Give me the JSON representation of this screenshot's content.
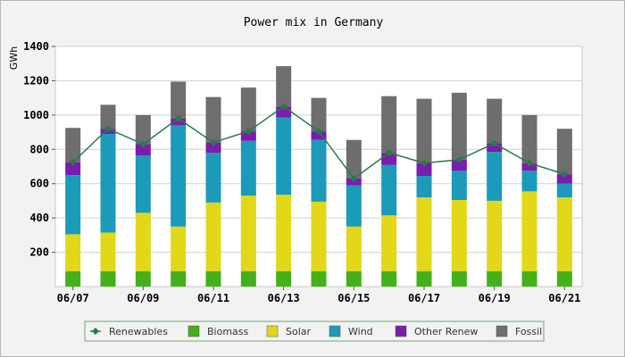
{
  "chart_data": {
    "type": "bar",
    "title": "Power mix in Germany",
    "ylabel": "GWh",
    "xlabel": "",
    "ylim": [
      0,
      1400
    ],
    "yticks": [
      200,
      400,
      600,
      800,
      1000,
      1200,
      1400
    ],
    "grid": true,
    "legend_position": "bottom",
    "categories": [
      "06/07",
      "06/08",
      "06/09",
      "06/10",
      "06/11",
      "06/12",
      "06/13",
      "06/14",
      "06/15",
      "06/16",
      "06/17",
      "06/18",
      "06/19",
      "06/20",
      "06/21"
    ],
    "xtick_labels": [
      "06/07",
      "06/09",
      "06/11",
      "06/13",
      "06/15",
      "06/17",
      "06/19",
      "06/21"
    ],
    "stacked_series": [
      {
        "name": "Biomass",
        "color": "#44b01a",
        "values": [
          90,
          90,
          90,
          90,
          90,
          90,
          90,
          90,
          90,
          90,
          90,
          90,
          90,
          90,
          90
        ]
      },
      {
        "name": "Solar",
        "color": "#e2d719",
        "values": [
          215,
          225,
          340,
          260,
          400,
          440,
          445,
          405,
          260,
          325,
          430,
          415,
          410,
          465,
          430
        ]
      },
      {
        "name": "Wind",
        "color": "#1c9ab9",
        "values": [
          345,
          575,
          335,
          590,
          290,
          320,
          450,
          360,
          240,
          295,
          125,
          170,
          285,
          120,
          80
        ]
      },
      {
        "name": "Other Renew",
        "color": "#7a1cae",
        "values": [
          75,
          30,
          65,
          40,
          60,
          55,
          65,
          50,
          40,
          70,
          75,
          65,
          50,
          45,
          55
        ]
      },
      {
        "name": "Fossil",
        "color": "#6e6e6e",
        "values": [
          200,
          140,
          170,
          215,
          265,
          255,
          235,
          195,
          225,
          330,
          375,
          390,
          260,
          280,
          265
        ]
      }
    ],
    "line_series": {
      "name": "Renewables",
      "color": "#2a7a4a",
      "values": [
        725,
        920,
        830,
        980,
        840,
        905,
        1050,
        905,
        630,
        780,
        720,
        740,
        835,
        720,
        655
      ]
    },
    "legend": [
      "Renewables",
      "Biomass",
      "Solar",
      "Wind",
      "Other Renew",
      "Fossil"
    ]
  }
}
